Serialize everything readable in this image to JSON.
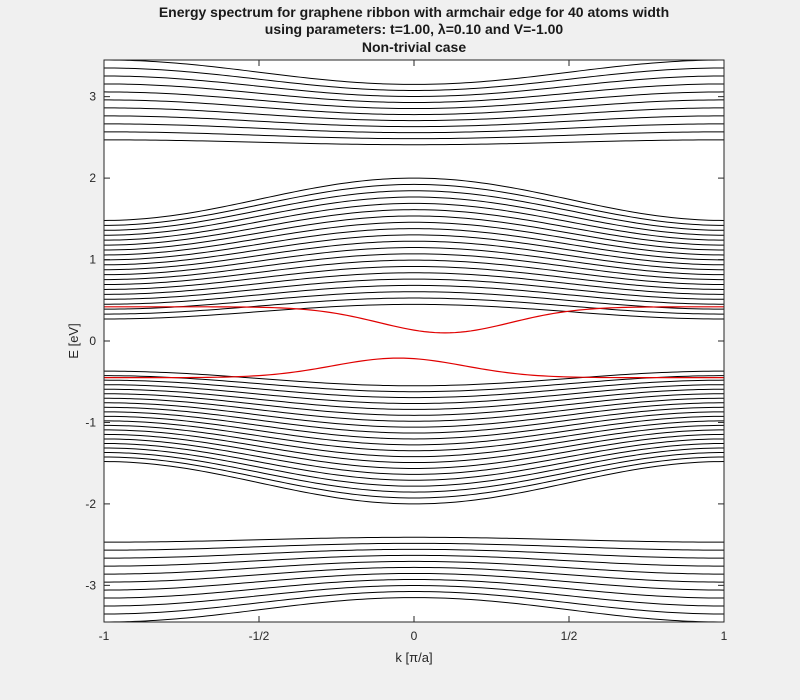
{
  "figure": {
    "background": "#f0f0f0"
  },
  "chart_data": {
    "type": "line",
    "title": [
      "Energy spectrum for graphene ribbon with armchair edge for 40 atoms width",
      "using parameters: t=1.00, λ=0.10 and V=-1.00",
      "Non-trivial case"
    ],
    "xlabel": "k [π/a]",
    "ylabel": "E [eV]",
    "xlim": [
      -1,
      1
    ],
    "ylim": [
      -3.45,
      3.45
    ],
    "xticks": [
      -1,
      -0.5,
      0,
      0.5,
      1
    ],
    "xticklabels": [
      "-1",
      "-1/2",
      "0",
      "1/2",
      "1"
    ],
    "yticks": [
      3,
      2,
      1,
      0,
      -1,
      -2,
      -3
    ],
    "yticklabels": [
      "3",
      "2",
      "1",
      "0",
      "-1",
      "-2",
      "-3"
    ],
    "grid": false,
    "legend": null,
    "colors": {
      "bands": "#000000",
      "edge_states": "#e00000"
    },
    "bands": {
      "shape": "E(k) = A + B * (1 - cos(pi*k))/2",
      "upper_outer": {
        "count": 11,
        "A_from": 3.15,
        "A_to": 2.41,
        "B_from": 0.3,
        "B_to": 0.06
      },
      "upper_inner": {
        "count": 21,
        "A_from": 2.0,
        "A_to": 0.45,
        "B_from": -0.52,
        "B_to": -0.18
      },
      "lower_inner": {
        "count": 21,
        "A_from": -2.0,
        "A_to": -0.55,
        "B_from": 0.52,
        "B_to": 0.18
      },
      "lower_outer": {
        "count": 11,
        "A_from": -3.15,
        "A_to": -2.41,
        "B_from": -0.3,
        "B_to": -0.06
      }
    },
    "edge_states": {
      "shape": "E(k) = A + B * exp(-((k-k0)/w)^2)",
      "series": [
        {
          "A": 0.42,
          "B": -0.32,
          "k0": 0.1,
          "w": 0.3
        },
        {
          "A": -0.45,
          "B": 0.24,
          "k0": -0.05,
          "w": 0.3
        }
      ]
    }
  }
}
